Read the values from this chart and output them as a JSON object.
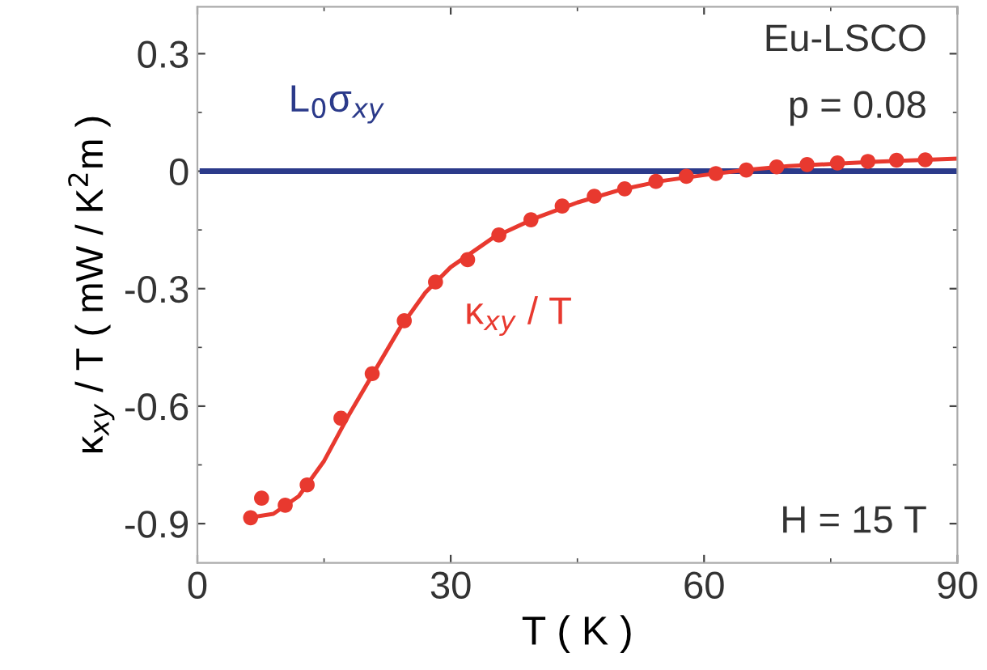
{
  "chart_data": {
    "type": "scatter",
    "xlabel": "T ( K )",
    "ylabel": "κ$_{xy}$ / T ( mW / K$^{2}$m )",
    "xlim": [
      0,
      90
    ],
    "xticks": [
      0,
      30,
      60,
      90
    ],
    "ylim": [
      -1.0,
      0.42
    ],
    "yticks": [
      -0.9,
      -0.6,
      -0.3,
      0,
      0.3
    ],
    "grid": false,
    "legend": false,
    "series": [
      {
        "type": "line",
        "name": "L$_{0}$σ$_{xy}$",
        "color": "#2b3a8a",
        "x": [
          0.6,
          90
        ],
        "values": [
          0,
          0
        ],
        "marker": "none"
      },
      {
        "color": "#e8392f",
        "marker": "circle",
        "x": [
          6.3,
          7.6,
          10.4,
          13.0,
          17.0,
          20.7,
          24.5,
          28.2,
          32.0,
          35.7,
          39.5,
          43.2,
          47.0,
          50.6,
          54.3,
          57.9,
          61.4,
          65.0,
          68.6,
          72.2,
          75.8,
          79.4,
          82.8,
          86.2
        ],
        "values": [
          -0.885,
          -0.835,
          -0.853,
          -0.801,
          -0.631,
          -0.517,
          -0.382,
          -0.283,
          -0.226,
          -0.163,
          -0.124,
          -0.089,
          -0.064,
          -0.045,
          -0.026,
          -0.013,
          -0.006,
          0.003,
          0.011,
          0.017,
          0.021,
          0.025,
          0.028,
          0.029
        ]
      },
      {
        "type": "line",
        "name": "κ$_{xy}$ / T",
        "color": "#e8392f",
        "marker": "none",
        "x": [
          6,
          9,
          12,
          15,
          18,
          21,
          24,
          27,
          30,
          35,
          40,
          45,
          50,
          55,
          60,
          65,
          70,
          80,
          90
        ],
        "values": [
          -0.885,
          -0.875,
          -0.83,
          -0.74,
          -0.62,
          -0.51,
          -0.4,
          -0.31,
          -0.245,
          -0.17,
          -0.12,
          -0.08,
          -0.048,
          -0.025,
          -0.01,
          0.003,
          0.013,
          0.024,
          0.032
        ]
      }
    ],
    "annotations": [
      "Eu-LSCO",
      "p = 0.08",
      "H = 15 T"
    ]
  }
}
